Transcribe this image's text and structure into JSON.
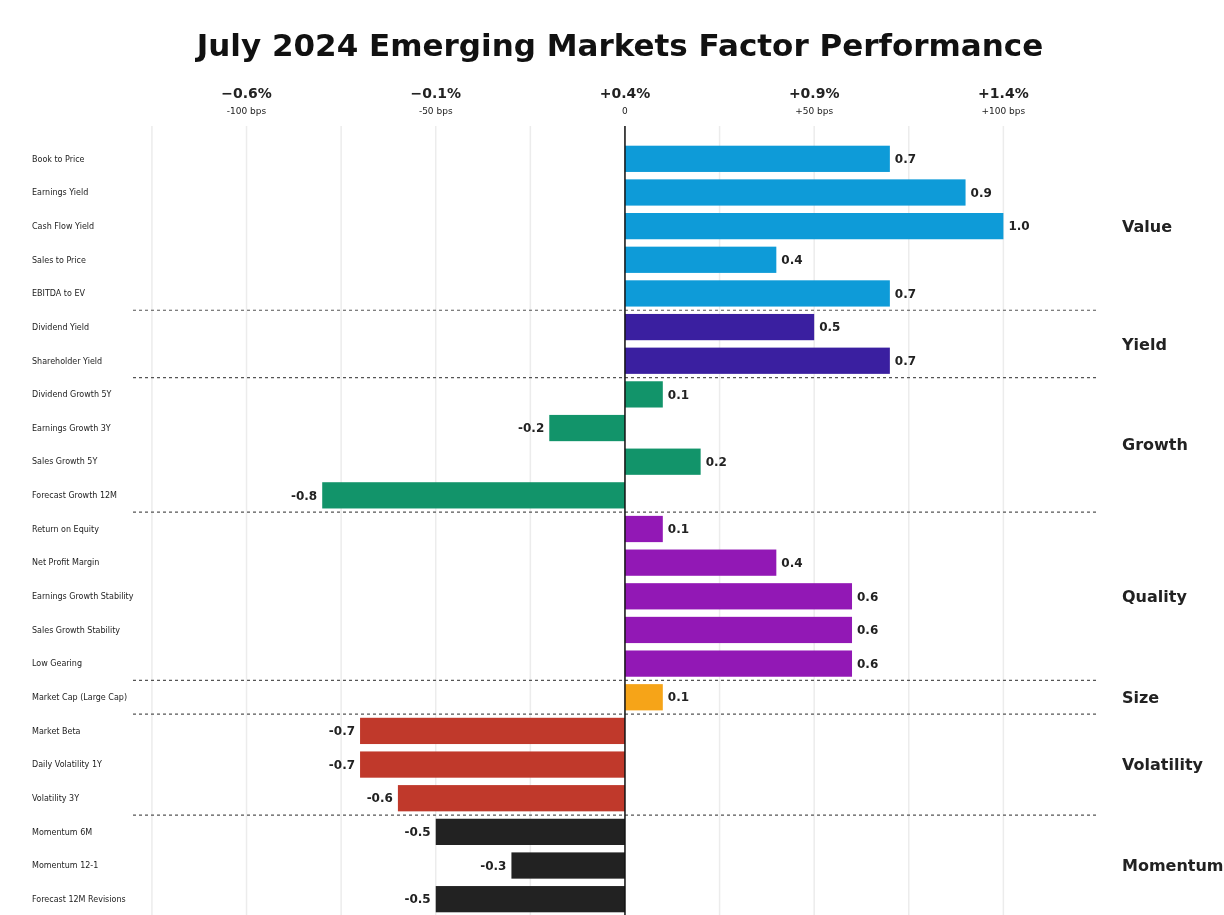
{
  "chart_data": {
    "type": "bar",
    "orientation": "horizontal",
    "title": "July 2024 Emerging Markets Factor Performance",
    "categories": [
      "Book to Price",
      "Earnings Yield",
      "Cash Flow Yield",
      "Sales to Price",
      "EBITDA to EV",
      "Dividend Yield",
      "Shareholder Yield",
      "Dividend Growth 5Y",
      "Earnings Growth 3Y",
      "Sales Growth 5Y",
      "Forecast Growth 12M",
      "Return on Equity",
      "Net Profit Margin",
      "Earnings Growth Stability",
      "Sales Growth Stability",
      "Low Gearing",
      "Market Cap (Large Cap)",
      "Market Beta",
      "Daily Volatility 1Y",
      "Volatility 3Y",
      "Momentum 6M",
      "Momentum 12-1",
      "Forecast 12M Revisions"
    ],
    "values": [
      0.7,
      0.9,
      1.0,
      0.4,
      0.7,
      0.5,
      0.7,
      0.1,
      -0.2,
      0.2,
      -0.8,
      0.1,
      0.4,
      0.6,
      0.6,
      0.6,
      0.1,
      -0.7,
      -0.7,
      -0.6,
      -0.5,
      -0.3,
      -0.5
    ],
    "base": [
      0.4,
      0.4,
      0.4,
      0.4,
      0.4,
      0.4,
      0.4,
      0.4,
      0.4,
      0.4,
      0.4,
      0.4,
      0.4,
      0.4,
      0.4,
      0.4,
      0.4,
      0.4,
      0.4,
      0.4,
      0.4,
      0.4,
      0.4
    ],
    "value_labels": [
      "0.7",
      "0.9",
      "1.0",
      "0.4",
      "0.7",
      "0.5",
      "0.7",
      "0.1",
      "-0.2",
      "0.2",
      "-0.8",
      "0.1",
      "0.4",
      "0.6",
      "0.6",
      "0.6",
      "0.1",
      "-0.7",
      "-0.7",
      "-0.6",
      "-0.5",
      "-0.3",
      "-0.5"
    ],
    "colors": [
      "#0e9bd8",
      "#0e9bd8",
      "#0e9bd8",
      "#0e9bd8",
      "#0e9bd8",
      "#3a1fa0",
      "#3a1fa0",
      "#12946a",
      "#12946a",
      "#12946a",
      "#12946a",
      "#9218b5",
      "#9218b5",
      "#9218b5",
      "#9218b5",
      "#9218b5",
      "#f6a418",
      "#c0392b",
      "#c0392b",
      "#c0392b",
      "#222222",
      "#222222",
      "#222222"
    ],
    "xlim": [
      -0.9,
      1.65
    ],
    "xticks": [
      {
        "value": -0.85,
        "label": null
      },
      {
        "value": -0.6,
        "label": "−0.6%"
      },
      {
        "value": -0.35,
        "label": null
      },
      {
        "value": -0.1,
        "label": "−0.1%"
      },
      {
        "value": 0.15,
        "label": null
      },
      {
        "value": 0.4,
        "label": "+0.4%"
      },
      {
        "value": 0.65,
        "label": null
      },
      {
        "value": 0.9,
        "label": "+0.9%"
      },
      {
        "value": 1.15,
        "label": null
      },
      {
        "value": 1.4,
        "label": "+1.4%"
      }
    ],
    "x2lim": [
      -130,
      125
    ],
    "x2ticks": [
      {
        "value": -100,
        "label": "-100 bps"
      },
      {
        "value": -50,
        "label": "-50 bps"
      },
      0,
      {
        "value": 50,
        "label": "+50 bps"
      },
      {
        "value": 100,
        "label": "+100 bps"
      }
    ],
    "grid": "x",
    "annotations": [
      "Value",
      "Yield",
      "Growth",
      "Quality",
      "Size",
      "Volatility",
      "Momentum"
    ]
  }
}
